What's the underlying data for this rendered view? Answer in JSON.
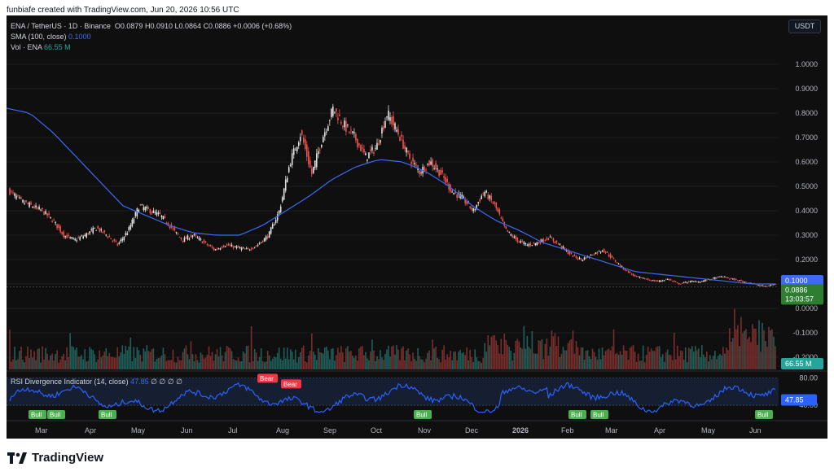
{
  "header": {
    "caption": "funbiafe created with TradingView.com, Jun 20, 2026 10:56 UTC"
  },
  "legend": {
    "symbol": "ENA / TetherUS · 1D · Binance",
    "open": "O0.0879",
    "high": "H0.0910",
    "low": "L0.0864",
    "close": "C0.0886",
    "change": "+0.0006 (+0.68%)",
    "sma_label": "SMA (100, close)",
    "sma_value": "0.1000",
    "vol_label": "Vol · ENA",
    "vol_value": "66.55 M",
    "rsi_label": "RSI Divergence Indicator (14, close)",
    "rsi_value": "47.85",
    "rsi_extra": "∅ ∅ ∅ ∅"
  },
  "currency_button": "USDT",
  "footer": {
    "brand": "TradingView"
  },
  "colors": {
    "up": "#26a69a",
    "down": "#ef5350",
    "sma": "#3b6bf2",
    "rsi": "#2962ff",
    "bg": "#0f0f0f",
    "bull": "#4caf50",
    "bear": "#f23645"
  },
  "chart_data": {
    "type": "candlestick",
    "ylim": [
      -0.25,
      1.05
    ],
    "y_ticks": [
      "1.0000",
      "0.9000",
      "0.8000",
      "0.7000",
      "0.6000",
      "0.5000",
      "0.4000",
      "0.3000",
      "0.2000",
      "0.1000",
      "0.0000",
      "-0.1000",
      "-0.2000"
    ],
    "x_ticks": [
      "Mar",
      "Apr",
      "May",
      "Jun",
      "Jul",
      "Aug",
      "Sep",
      "Oct",
      "Nov",
      "Dec",
      "2026",
      "Feb",
      "Mar",
      "Apr",
      "May",
      "Jun"
    ],
    "price_path": [
      0.48,
      0.44,
      0.42,
      0.4,
      0.36,
      0.3,
      0.28,
      0.3,
      0.33,
      0.3,
      0.26,
      0.32,
      0.42,
      0.4,
      0.38,
      0.33,
      0.28,
      0.3,
      0.27,
      0.24,
      0.26,
      0.25,
      0.24,
      0.26,
      0.3,
      0.4,
      0.6,
      0.72,
      0.55,
      0.7,
      0.82,
      0.75,
      0.7,
      0.62,
      0.66,
      0.8,
      0.72,
      0.62,
      0.56,
      0.6,
      0.55,
      0.48,
      0.45,
      0.4,
      0.48,
      0.42,
      0.32,
      0.28,
      0.26,
      0.27,
      0.29,
      0.26,
      0.22,
      0.2,
      0.22,
      0.24,
      0.2,
      0.16,
      0.13,
      0.12,
      0.11,
      0.12,
      0.1,
      0.11,
      0.11,
      0.12,
      0.13,
      0.12,
      0.11,
      0.1,
      0.09,
      0.1
    ],
    "sma_path": [
      0.82,
      0.8,
      0.72,
      0.62,
      0.52,
      0.42,
      0.38,
      0.34,
      0.31,
      0.3,
      0.3,
      0.34,
      0.4,
      0.46,
      0.53,
      0.58,
      0.61,
      0.6,
      0.56,
      0.5,
      0.42,
      0.36,
      0.32,
      0.27,
      0.24,
      0.21,
      0.18,
      0.15,
      0.14,
      0.13,
      0.12,
      0.11,
      0.1,
      0.1
    ],
    "last_price": "0.0886",
    "countdown": "13:03:57",
    "sma_tag": "0.1000",
    "vol_tag": "66.55 M",
    "rsi": {
      "ylim": [
        20,
        90
      ],
      "ticks": [
        "80.00",
        "40.00"
      ],
      "last": "47.85",
      "bull_labels": [
        "Bull",
        "Bull",
        "Bull",
        "Bull",
        "Bull",
        "Bull",
        "Bull"
      ],
      "bear_labels": [
        "Bear",
        "Bear"
      ]
    }
  }
}
